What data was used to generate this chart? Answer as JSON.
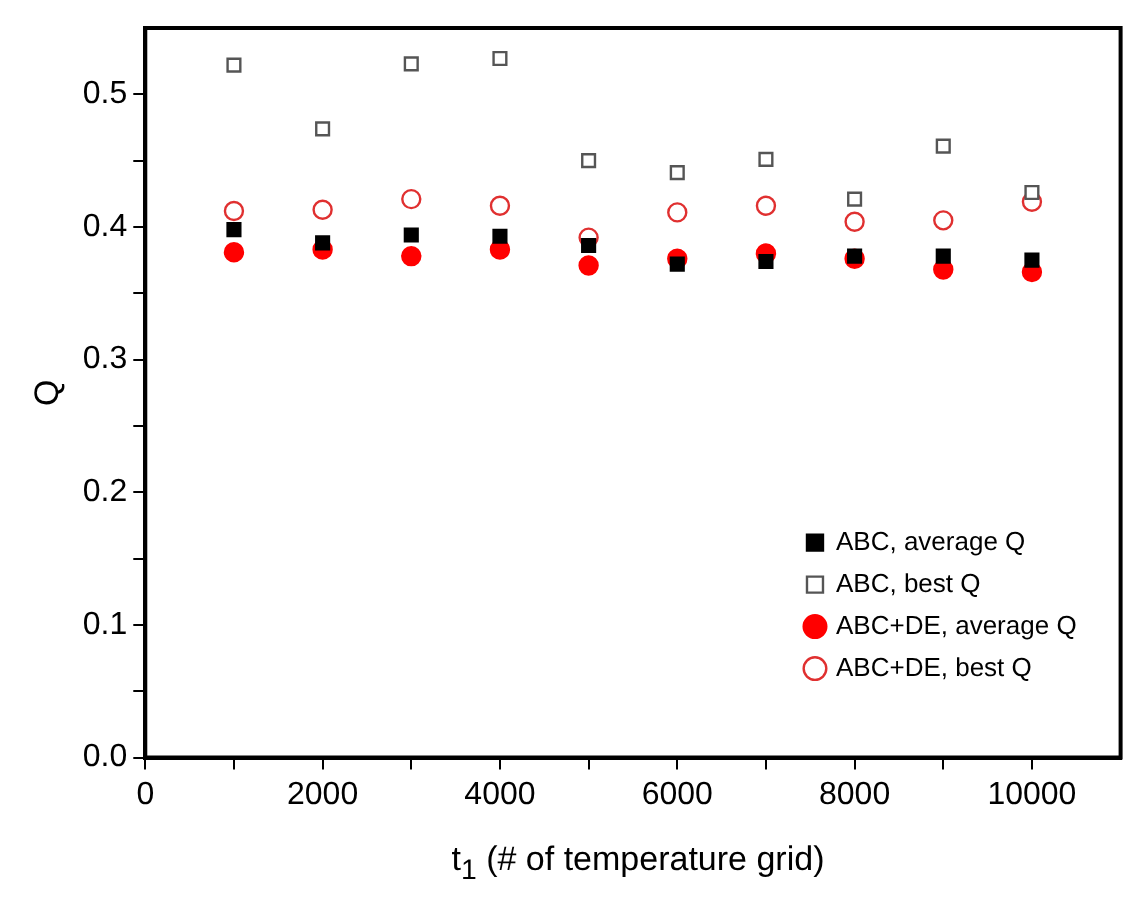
{
  "chart_data": {
    "type": "scatter",
    "xlabel": "t$_{1}$ (# of temperature grid)",
    "ylabel": "Q",
    "x": [
      1000,
      2000,
      3000,
      4000,
      5000,
      6000,
      7000,
      8000,
      9000,
      10000
    ],
    "series": [
      {
        "name": "ABC, average Q",
        "color": "#000000",
        "marker": "square",
        "values": [
          0.398,
          0.388,
          0.394,
          0.393,
          0.386,
          0.372,
          0.374,
          0.378,
          0.378,
          0.375
        ]
      },
      {
        "name": "ABC, best Q",
        "color": "#555555",
        "marker": "square",
        "values": [
          0.522,
          0.474,
          0.523,
          0.527,
          0.45,
          0.441,
          0.451,
          0.421,
          0.461,
          0.426
        ]
      },
      {
        "name": "ABC+DE, average Q",
        "color": "#ff0000",
        "marker": "circle",
        "values": [
          0.381,
          0.383,
          0.378,
          0.383,
          0.371,
          0.376,
          0.38,
          0.376,
          0.368,
          0.366
        ]
      },
      {
        "name": "ABC+DE, best Q",
        "color": "#e03030",
        "marker": "circle",
        "values": [
          0.412,
          0.413,
          0.421,
          0.416,
          0.392,
          0.411,
          0.416,
          0.404,
          0.405,
          0.419
        ]
      }
    ],
    "xlim": [
      0,
      11000
    ],
    "xticks": [
      0,
      {
        "value": 1000,
        "label": null
      },
      2000,
      {
        "value": 3000,
        "label": null
      },
      4000,
      {
        "value": 5000,
        "label": null
      },
      6000,
      {
        "value": 7000,
        "label": null
      },
      8000,
      {
        "value": 9000,
        "label": null
      },
      10000
    ],
    "ylim": [
      0,
      0.55
    ],
    "yticks": [
      {
        "value": 0,
        "label": "0.0"
      },
      {
        "value": 0.05,
        "label": null
      },
      {
        "value": 0.1,
        "label": "0.1"
      },
      {
        "value": 0.15,
        "label": null
      },
      {
        "value": 0.2,
        "label": "0.2"
      },
      {
        "value": 0.25,
        "label": null
      },
      {
        "value": 0.3,
        "label": "0.3"
      },
      {
        "value": 0.35,
        "label": null
      },
      {
        "value": 0.4,
        "label": "0.4"
      },
      {
        "value": 0.45,
        "label": null
      },
      {
        "value": 0.5,
        "label": "0.5"
      }
    ],
    "grid": false,
    "legend": "bottom right"
  }
}
